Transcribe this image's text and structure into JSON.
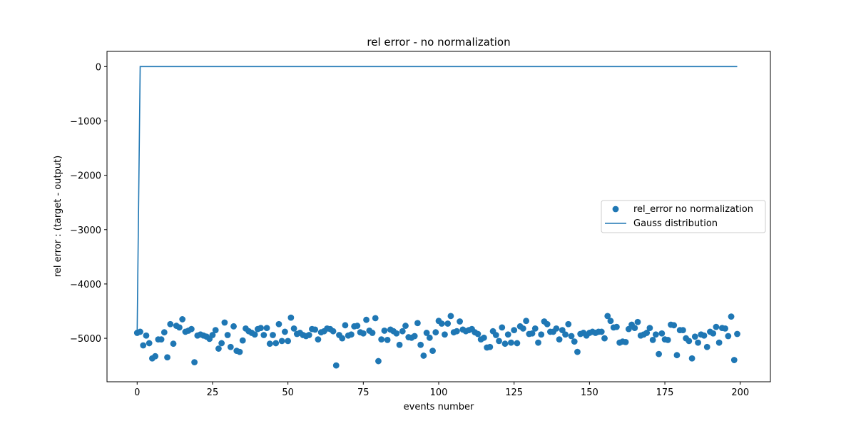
{
  "chart_data": {
    "type": "scatter",
    "title": "rel error - no normalization",
    "xlabel": "events number",
    "ylabel": "rel error : (target - output)",
    "xlim": [
      -10,
      210
    ],
    "ylim": [
      -5800,
      280
    ],
    "xticks": [
      0,
      25,
      50,
      75,
      100,
      125,
      150,
      175,
      200
    ],
    "yticks": [
      0,
      -1000,
      -2000,
      -3000,
      -4000,
      -5000
    ],
    "ytick_labels": [
      "0",
      "−1000",
      "−2000",
      "−3000",
      "−4000",
      "−5000"
    ],
    "grid": false,
    "legend_position": "center-right",
    "series": [
      {
        "name": "rel_error no normalization",
        "kind": "scatter",
        "color": "#1f77b4",
        "x_start": 0,
        "x_step": 1,
        "values": [
          -4900,
          -4880,
          -5130,
          -4950,
          -5090,
          -5370,
          -5330,
          -5020,
          -5020,
          -4890,
          -5350,
          -4740,
          -5100,
          -4770,
          -4800,
          -4650,
          -4880,
          -4860,
          -4830,
          -5440,
          -4950,
          -4930,
          -4950,
          -4970,
          -5010,
          -4940,
          -4850,
          -5190,
          -5090,
          -4710,
          -4940,
          -5160,
          -4780,
          -5230,
          -5250,
          -5040,
          -4820,
          -4870,
          -4900,
          -4930,
          -4830,
          -4810,
          -4940,
          -4810,
          -5100,
          -4940,
          -5090,
          -4740,
          -5050,
          -4880,
          -5050,
          -4620,
          -4820,
          -4920,
          -4900,
          -4940,
          -4960,
          -4940,
          -4830,
          -4840,
          -5020,
          -4890,
          -4870,
          -4820,
          -4830,
          -4870,
          -5500,
          -4940,
          -5000,
          -4760,
          -4950,
          -4930,
          -4780,
          -4770,
          -4890,
          -4910,
          -4660,
          -4860,
          -4900,
          -4630,
          -5420,
          -5020,
          -4860,
          -5030,
          -4840,
          -4870,
          -4910,
          -5120,
          -4870,
          -4770,
          -4980,
          -4990,
          -4960,
          -4720,
          -5120,
          -5320,
          -4900,
          -4990,
          -5230,
          -4890,
          -4680,
          -4730,
          -4930,
          -4730,
          -4590,
          -4890,
          -4870,
          -4690,
          -4840,
          -4870,
          -4850,
          -4830,
          -4890,
          -4920,
          -5020,
          -4990,
          -5170,
          -5160,
          -4870,
          -4940,
          -5050,
          -4800,
          -5100,
          -4930,
          -5080,
          -4850,
          -5090,
          -4780,
          -4820,
          -4680,
          -4920,
          -4910,
          -4820,
          -5080,
          -4930,
          -4690,
          -4740,
          -4880,
          -4880,
          -4820,
          -5020,
          -4850,
          -4930,
          -4740,
          -4960,
          -5060,
          -5250,
          -4920,
          -4900,
          -4950,
          -4900,
          -4880,
          -4900,
          -4880,
          -4880,
          -5000,
          -4590,
          -4680,
          -4800,
          -4790,
          -5080,
          -5060,
          -5070,
          -4830,
          -4750,
          -4810,
          -4700,
          -4950,
          -4930,
          -4900,
          -4810,
          -5030,
          -4930,
          -5290,
          -4910,
          -5020,
          -5030,
          -4750,
          -4760,
          -5310,
          -4850,
          -4850,
          -5000,
          -5050,
          -5370,
          -4970,
          -5080,
          -4930,
          -4950,
          -5160,
          -4880,
          -4910,
          -4790,
          -5080,
          -4810,
          -4820,
          -4960,
          -4600,
          -5400,
          -4920
        ]
      },
      {
        "name": "Gauss distribution",
        "kind": "line",
        "color": "#1f77b4",
        "x": [
          0,
          1,
          2,
          199
        ],
        "y": [
          -4900,
          0,
          0,
          0
        ]
      }
    ]
  }
}
